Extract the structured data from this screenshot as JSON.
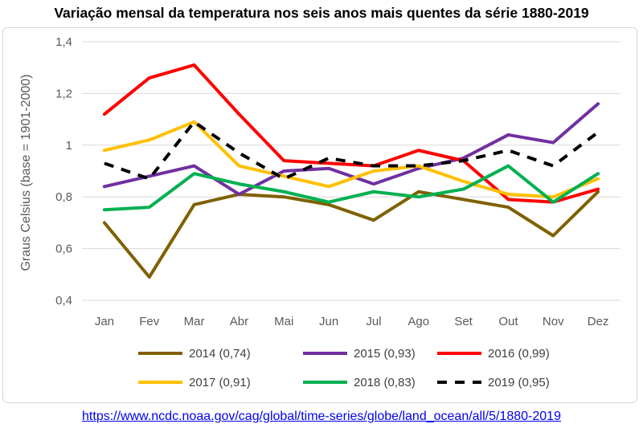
{
  "chart_data": {
    "type": "line",
    "title": "Variação mensal da temperatura nos seis anos mais quentes da série 1880-2019",
    "ylabel": "Graus Celsius (base = 1901-2000)",
    "xlabel": "",
    "categories": [
      "Jan",
      "Fev",
      "Mar",
      "Abr",
      "Mai",
      "Jun",
      "Jul",
      "Ago",
      "Set",
      "Out",
      "Nov",
      "Dez"
    ],
    "ylim": [
      0.4,
      1.4
    ],
    "yticks": [
      "0,4",
      "0,6",
      "0,8",
      "1",
      "1,2",
      "1,4"
    ],
    "ytick_values": [
      0.4,
      0.6,
      0.8,
      1.0,
      1.2,
      1.4
    ],
    "grid": true,
    "legend_position": "bottom",
    "series": [
      {
        "name": "2014 (0,74)",
        "color": "#7f6000",
        "dashed": false,
        "values": [
          0.7,
          0.49,
          0.77,
          0.81,
          0.8,
          0.77,
          0.71,
          0.82,
          0.79,
          0.76,
          0.65,
          0.82
        ]
      },
      {
        "name": "2015 (0,93)",
        "color": "#7030a0",
        "dashed": false,
        "values": [
          0.84,
          0.88,
          0.92,
          0.81,
          0.9,
          0.91,
          0.85,
          0.91,
          0.95,
          1.04,
          1.01,
          1.16
        ]
      },
      {
        "name": "2016 (0,99)",
        "color": "#ff0000",
        "dashed": false,
        "values": [
          1.12,
          1.26,
          1.31,
          1.12,
          0.94,
          0.93,
          0.92,
          0.98,
          0.94,
          0.79,
          0.78,
          0.83
        ]
      },
      {
        "name": "2017 (0,91)",
        "color": "#ffc000",
        "dashed": false,
        "values": [
          0.98,
          1.02,
          1.09,
          0.92,
          0.88,
          0.84,
          0.9,
          0.92,
          0.86,
          0.81,
          0.8,
          0.87
        ]
      },
      {
        "name": "2018 (0,83)",
        "color": "#00b050",
        "dashed": false,
        "values": [
          0.75,
          0.76,
          0.89,
          0.85,
          0.82,
          0.78,
          0.82,
          0.8,
          0.83,
          0.92,
          0.78,
          0.89
        ]
      },
      {
        "name": "2019 (0,95)",
        "color": "#000000",
        "dashed": true,
        "values": [
          0.93,
          0.87,
          1.09,
          0.97,
          0.87,
          0.95,
          0.92,
          0.92,
          0.94,
          0.98,
          0.92,
          1.05
        ]
      }
    ]
  },
  "source_url": "https://www.ncdc.noaa.gov/cag/global/time-series/globe/land_ocean/all/5/1880-2019"
}
